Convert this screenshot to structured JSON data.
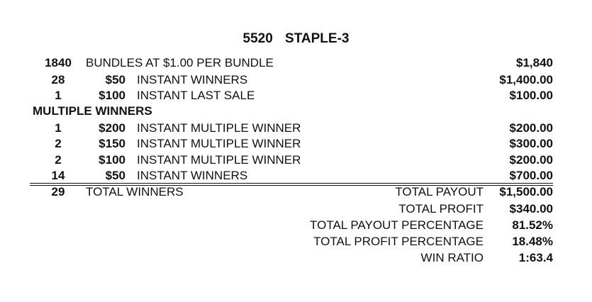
{
  "title": "5520   STAPLE-3",
  "rows": [
    {
      "qty": "1840",
      "price": "",
      "desc": "BUNDLES AT $1.00 PER BUNDLE",
      "amount": "$1,840"
    },
    {
      "qty": "28",
      "price": "$50",
      "desc": "INSTANT WINNERS",
      "amount": "$1,400.00"
    },
    {
      "qty": "1",
      "price": "$100",
      "desc": "INSTANT LAST SALE",
      "amount": "$100.00"
    }
  ],
  "section_heading": "MULTIPLE WINNERS",
  "multi_rows": [
    {
      "qty": "1",
      "price": "$200",
      "desc": "INSTANT MULTIPLE WINNER",
      "amount": "$200.00"
    },
    {
      "qty": "2",
      "price": "$150",
      "desc": "INSTANT MULTIPLE WINNER",
      "amount": "$300.00"
    },
    {
      "qty": "2",
      "price": "$100",
      "desc": "INSTANT MULTIPLE WINNER",
      "amount": "$200.00"
    },
    {
      "qty": "14",
      "price": "$50",
      "desc": "INSTANT WINNERS",
      "amount": "$700.00"
    }
  ],
  "total_winners": {
    "qty": "29",
    "label": "TOTAL WINNERS"
  },
  "summary": [
    {
      "label": "TOTAL PAYOUT",
      "value": "$1,500.00"
    },
    {
      "label": "TOTAL PROFIT",
      "value": "$340.00"
    },
    {
      "label": "TOTAL PAYOUT PERCENTAGE",
      "value": "81.52%"
    },
    {
      "label": "TOTAL PROFIT PERCENTAGE",
      "value": "18.48%"
    },
    {
      "label": "WIN RATIO",
      "value": "1:63.4"
    }
  ]
}
